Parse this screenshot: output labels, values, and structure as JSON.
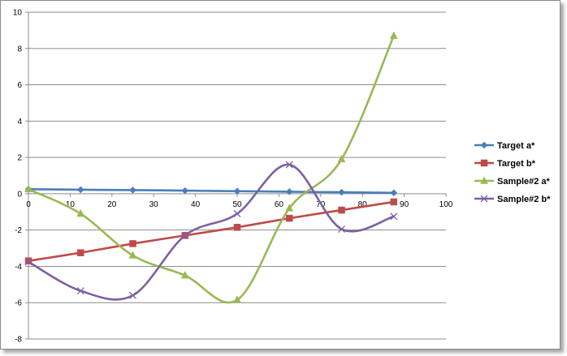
{
  "chart_data": {
    "type": "line",
    "title": "",
    "xlabel": "",
    "ylabel": "",
    "xlim": [
      0,
      100
    ],
    "ylim": [
      -8,
      10
    ],
    "x_ticks": [
      0,
      10,
      20,
      30,
      40,
      50,
      60,
      70,
      80,
      90,
      100
    ],
    "y_ticks": [
      -8,
      -6,
      -4,
      -2,
      0,
      2,
      4,
      6,
      8,
      10
    ],
    "grid": "horizontal",
    "smooth": true,
    "legend_position": "right",
    "series": [
      {
        "name": "Target a*",
        "color": "#4a7ebb",
        "marker": "diamond",
        "points": [
          [
            0,
            0.25
          ],
          [
            12.5,
            0.22
          ],
          [
            25,
            0.2
          ],
          [
            37.5,
            0.17
          ],
          [
            50,
            0.14
          ],
          [
            62.5,
            0.11
          ],
          [
            75,
            0.08
          ],
          [
            87.5,
            0.05
          ]
        ]
      },
      {
        "name": "Target b*",
        "color": "#be4b48",
        "marker": "square",
        "points": [
          [
            0,
            -3.7
          ],
          [
            12.5,
            -3.25
          ],
          [
            25,
            -2.75
          ],
          [
            37.5,
            -2.3
          ],
          [
            50,
            -1.85
          ],
          [
            62.5,
            -1.35
          ],
          [
            75,
            -0.9
          ],
          [
            87.5,
            -0.45
          ]
        ]
      },
      {
        "name": "Sample#2 a*",
        "color": "#98b954",
        "marker": "triangle",
        "points": [
          [
            0,
            0.25
          ],
          [
            12.5,
            -1.1
          ],
          [
            25,
            -3.4
          ],
          [
            37.5,
            -4.5
          ],
          [
            50,
            -5.85
          ],
          [
            62.5,
            -0.8
          ],
          [
            75,
            1.9
          ],
          [
            87.5,
            8.7
          ]
        ]
      },
      {
        "name": "Sample#2 b*",
        "color": "#7d60a0",
        "marker": "x",
        "points": [
          [
            0,
            -3.75
          ],
          [
            12.5,
            -5.35
          ],
          [
            25,
            -5.6
          ],
          [
            37.5,
            -2.3
          ],
          [
            50,
            -1.1
          ],
          [
            62.5,
            1.6
          ],
          [
            75,
            -1.95
          ],
          [
            87.5,
            -1.25
          ]
        ]
      }
    ]
  }
}
